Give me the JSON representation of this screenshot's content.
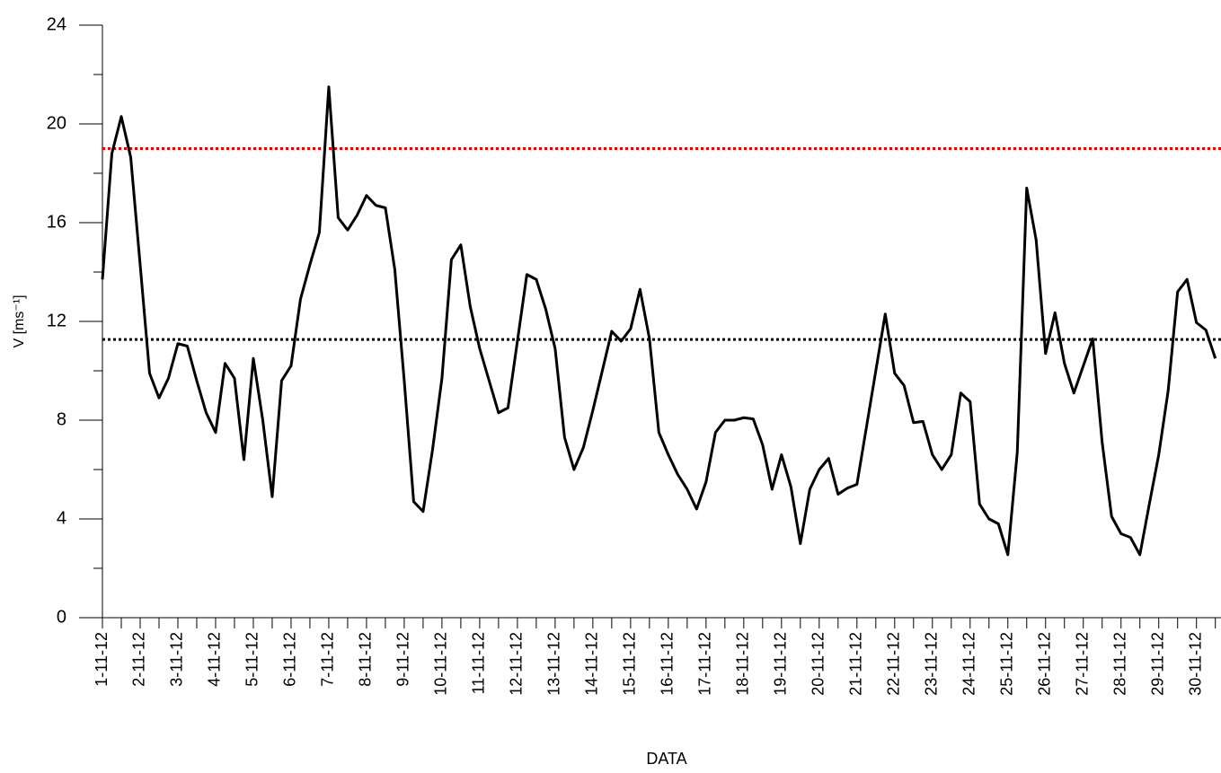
{
  "chart_data": {
    "type": "line",
    "x_label": "DATA",
    "y_label": "V [ms⁻¹]",
    "color": "#000000",
    "x": [
      1,
      1.25,
      1.5,
      1.75,
      2,
      2.25,
      2.5,
      2.75,
      3,
      3.25,
      3.5,
      3.75,
      4,
      4.25,
      4.5,
      4.75,
      5,
      5.25,
      5.5,
      5.75,
      6,
      6.25,
      6.5,
      6.75,
      7,
      7.25,
      7.5,
      7.75,
      8,
      8.25,
      8.5,
      8.75,
      9,
      9.25,
      9.5,
      9.75,
      10,
      10.25,
      10.5,
      10.75,
      11,
      11.25,
      11.5,
      11.75,
      12,
      12.25,
      12.5,
      12.75,
      13,
      13.25,
      13.5,
      13.75,
      14,
      14.25,
      14.5,
      14.75,
      15,
      15.25,
      15.5,
      15.75,
      16,
      16.25,
      16.5,
      16.75,
      17,
      17.25,
      17.5,
      17.75,
      18,
      18.25,
      18.5,
      18.75,
      19,
      19.25,
      19.5,
      19.75,
      20,
      20.25,
      20.5,
      20.75,
      21,
      21.25,
      21.5,
      21.75,
      22,
      22.25,
      22.5,
      22.75,
      23,
      23.25,
      23.5,
      23.75,
      24,
      24.25,
      24.5,
      24.75,
      25,
      25.25,
      25.5,
      25.75,
      26,
      26.25,
      26.5,
      26.75,
      27,
      27.25,
      27.5,
      27.75,
      28,
      28.25,
      28.5,
      28.75,
      29,
      29.25,
      29.5,
      29.75,
      30,
      30.25,
      30.5
    ],
    "values": [
      13.7,
      18.8,
      20.3,
      18.65,
      14.3,
      9.9,
      8.9,
      9.7,
      11.1,
      11.0,
      9.6,
      8.3,
      7.5,
      10.3,
      9.7,
      6.4,
      10.5,
      8.0,
      4.9,
      9.6,
      10.2,
      12.9,
      14.3,
      15.6,
      21.5,
      16.2,
      15.7,
      16.3,
      17.1,
      16.7,
      16.6,
      14.1,
      9.6,
      4.7,
      4.3,
      6.8,
      9.7,
      14.5,
      15.1,
      12.6,
      10.9,
      9.6,
      8.3,
      8.5,
      11.2,
      13.9,
      13.7,
      12.5,
      10.9,
      7.3,
      6.0,
      6.9,
      8.4,
      10.0,
      11.6,
      11.2,
      11.7,
      13.3,
      11.3,
      7.5,
      6.6,
      5.8,
      5.2,
      4.4,
      5.5,
      7.5,
      8.0,
      8.0,
      8.1,
      8.05,
      7.0,
      5.2,
      6.6,
      5.3,
      3.0,
      5.2,
      6.0,
      6.45,
      5.0,
      5.25,
      5.4,
      7.7,
      10.0,
      12.3,
      9.9,
      9.4,
      7.9,
      7.95,
      6.6,
      6.0,
      6.6,
      9.1,
      8.75,
      4.6,
      4.0,
      3.8,
      2.55,
      6.7,
      17.4,
      15.3,
      10.7,
      12.35,
      10.3,
      9.1,
      10.2,
      11.3,
      7.1,
      4.1,
      3.4,
      3.25,
      2.55,
      4.6,
      6.6,
      9.2,
      13.2,
      13.7,
      11.95,
      11.65,
      10.5
    ],
    "reference_lines": [
      {
        "value": 19.0,
        "color": "#e00000"
      },
      {
        "value": 11.27,
        "color": "#000000"
      }
    ],
    "xlim": [
      1,
      30.65
    ],
    "ylim": [
      0,
      24
    ],
    "yticks": [
      0,
      4,
      8,
      12,
      16,
      20,
      24
    ],
    "yminorticks": [
      2,
      6,
      10,
      14,
      18,
      22
    ],
    "xticks": [
      {
        "value": 1,
        "label": "1-11-12"
      },
      {
        "value": 2,
        "label": "2-11-12"
      },
      {
        "value": 3,
        "label": "3-11-12"
      },
      {
        "value": 4,
        "label": "4-11-12"
      },
      {
        "value": 5,
        "label": "5-11-12"
      },
      {
        "value": 6,
        "label": "6-11-12"
      },
      {
        "value": 7,
        "label": "7-11-12"
      },
      {
        "value": 8,
        "label": "8-11-12"
      },
      {
        "value": 9,
        "label": "9-11-12"
      },
      {
        "value": 10,
        "label": "10-11-12"
      },
      {
        "value": 11,
        "label": "11-11-12"
      },
      {
        "value": 12,
        "label": "12-11-12"
      },
      {
        "value": 13,
        "label": "13-11-12"
      },
      {
        "value": 14,
        "label": "14-11-12"
      },
      {
        "value": 15,
        "label": "15-11-12"
      },
      {
        "value": 16,
        "label": "16-11-12"
      },
      {
        "value": 17,
        "label": "17-11-12"
      },
      {
        "value": 18,
        "label": "18-11-12"
      },
      {
        "value": 19,
        "label": "19-11-12"
      },
      {
        "value": 20,
        "label": "20-11-12"
      },
      {
        "value": 21,
        "label": "21-11-12"
      },
      {
        "value": 22,
        "label": "22-11-12"
      },
      {
        "value": 23,
        "label": "23-11-12"
      },
      {
        "value": 24,
        "label": "24-11-12"
      },
      {
        "value": 25,
        "label": "25-11-12"
      },
      {
        "value": 26,
        "label": "26-11-12"
      },
      {
        "value": 27,
        "label": "27-11-12"
      },
      {
        "value": 28,
        "label": "28-11-12"
      },
      {
        "value": 29,
        "label": "29-11-12"
      },
      {
        "value": 30,
        "label": "30-11-12"
      }
    ],
    "xminorticks": [
      1.5,
      2.5,
      3.5,
      4.5,
      5.5,
      6.5,
      7.5,
      8.5,
      9.5,
      10.5,
      11.5,
      12.5,
      13.5,
      14.5,
      15.5,
      16.5,
      17.5,
      18.5,
      19.5,
      20.5,
      21.5,
      22.5,
      23.5,
      24.5,
      25.5,
      26.5,
      27.5,
      28.5,
      29.5,
      30.5
    ]
  }
}
